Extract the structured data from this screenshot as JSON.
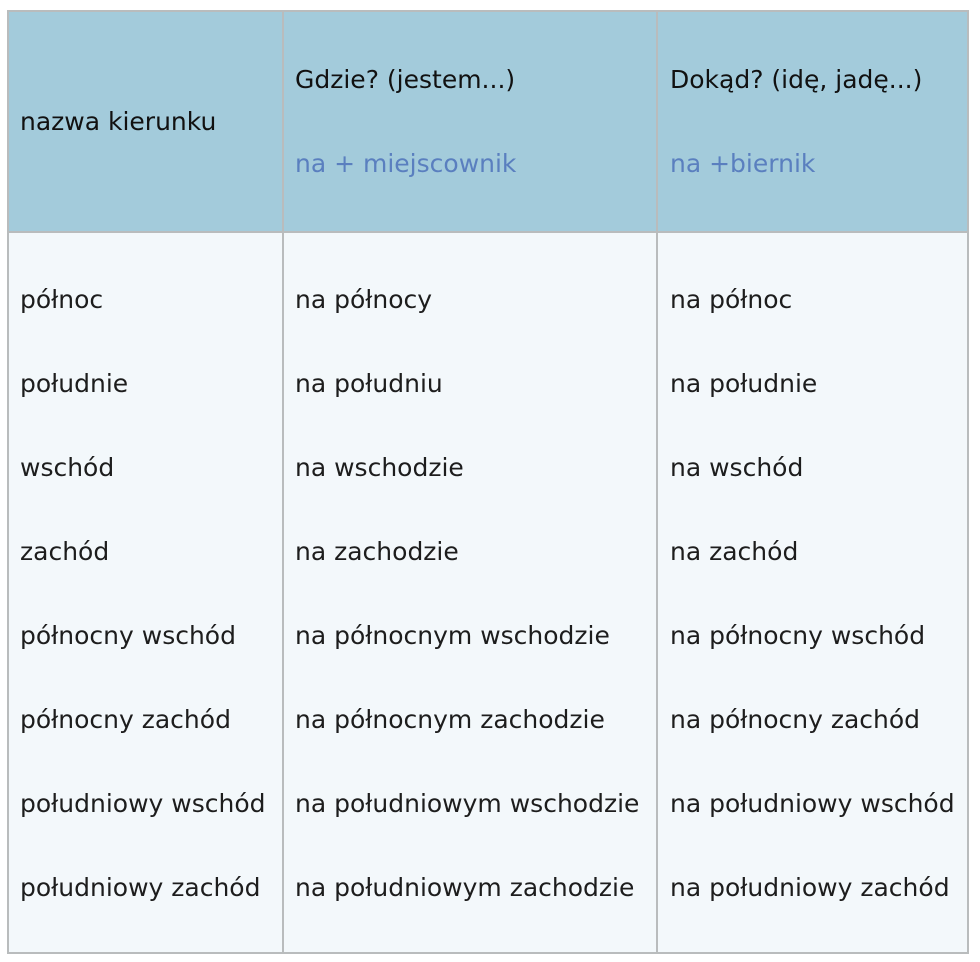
{
  "table": {
    "header": {
      "col1": "nazwa kierunku",
      "col2_title": "Gdzie? (jestem...)",
      "col2_sub": "na + miejscownik",
      "col3_title": "Dokąd? (idę, jadę...)",
      "col3_sub": "na +biernik"
    },
    "rows": [
      {
        "name": "północ",
        "gdzie": "na północy",
        "dokad": "na północ"
      },
      {
        "name": "południe",
        "gdzie": "na południu",
        "dokad": "na południe"
      },
      {
        "name": "wschód",
        "gdzie": "na wschodzie",
        "dokad": "na wschód"
      },
      {
        "name": "zachód",
        "gdzie": "na zachodzie",
        "dokad": "na zachód"
      },
      {
        "name": "północny wschód",
        "gdzie": "na północnym wschodzie",
        "dokad": "na północny wschód"
      },
      {
        "name": "północny zachód",
        "gdzie": "na północnym zachodzie",
        "dokad": "na północny zachód"
      },
      {
        "name": "południowy wschód",
        "gdzie": "na południowym wschodzie",
        "dokad": "na południowy wschód"
      },
      {
        "name": "południowy zachód",
        "gdzie": "na południowym zachodzie",
        "dokad": "na południowy zachód"
      }
    ]
  }
}
